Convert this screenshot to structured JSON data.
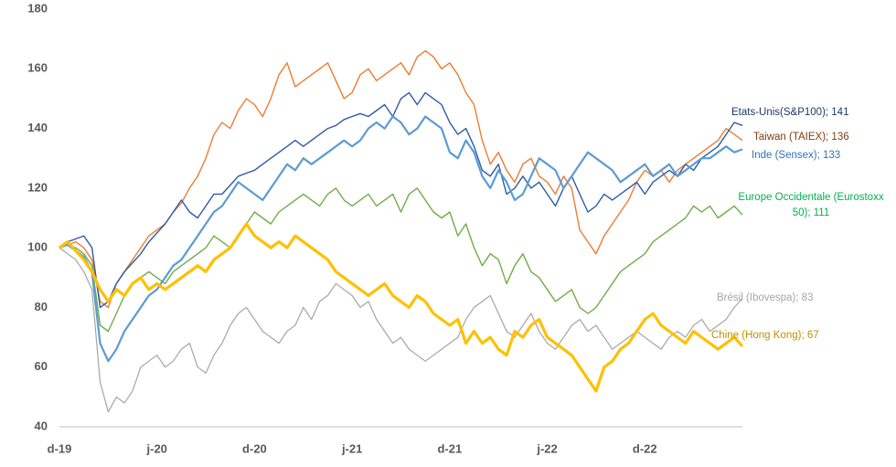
{
  "chart_data": {
    "type": "line",
    "categories": [
      "d-19",
      null,
      null,
      null,
      null,
      null,
      null,
      null,
      null,
      null,
      null,
      null,
      "j-20",
      null,
      null,
      null,
      null,
      null,
      null,
      null,
      null,
      null,
      null,
      null,
      "d-20",
      null,
      null,
      null,
      null,
      null,
      null,
      null,
      null,
      null,
      null,
      null,
      "j-21",
      null,
      null,
      null,
      null,
      null,
      null,
      null,
      null,
      null,
      null,
      null,
      "d-21",
      null,
      null,
      null,
      null,
      null,
      null,
      null,
      null,
      null,
      null,
      null,
      "j-22",
      null,
      null,
      null,
      null,
      null,
      null,
      null,
      null,
      null,
      null,
      null,
      "d-22",
      null,
      null,
      null,
      null,
      null,
      null,
      null,
      null,
      null,
      null,
      null,
      null
    ],
    "ylim": [
      40,
      180
    ],
    "yticks": [
      40,
      60,
      80,
      100,
      120,
      140,
      160,
      180
    ],
    "series": [
      {
        "label_lines": [
          "Etats-Unis(S&P100);  141"
        ],
        "color": "#2f5aa8",
        "label_color": "#1f3864",
        "values": [
          100,
          102,
          103,
          104,
          100,
          80,
          82,
          88,
          92,
          95,
          98,
          102,
          105,
          108,
          112,
          116,
          112,
          110,
          114,
          118,
          118,
          121,
          124,
          125,
          126,
          128,
          130,
          132,
          134,
          136,
          134,
          136,
          138,
          140,
          141,
          143,
          144,
          145,
          144,
          146,
          148,
          144,
          150,
          152,
          148,
          152,
          150,
          148,
          142,
          138,
          140,
          134,
          126,
          124,
          128,
          118,
          120,
          124,
          120,
          122,
          118,
          114,
          120,
          124,
          118,
          112,
          114,
          118,
          116,
          118,
          120,
          122,
          118,
          122,
          124,
          126,
          124,
          128,
          126,
          130,
          132,
          134,
          138,
          142,
          141
        ]
      },
      {
        "label_lines": [
          "Taiwan (TAIEX);  136"
        ],
        "color": "#ed7d31",
        "label_color": "#843c0c",
        "values": [
          100,
          101,
          102,
          100,
          96,
          82,
          80,
          88,
          92,
          96,
          100,
          104,
          106,
          108,
          112,
          115,
          120,
          124,
          130,
          138,
          142,
          140,
          146,
          150,
          148,
          144,
          150,
          158,
          162,
          154,
          156,
          158,
          160,
          162,
          156,
          150,
          152,
          158,
          160,
          156,
          158,
          160,
          162,
          158,
          164,
          166,
          164,
          160,
          162,
          158,
          152,
          148,
          136,
          128,
          132,
          126,
          122,
          128,
          130,
          124,
          122,
          118,
          124,
          120,
          106,
          102,
          98,
          104,
          108,
          112,
          116,
          122,
          126,
          124,
          126,
          122,
          126,
          128,
          130,
          132,
          134,
          136,
          140,
          138,
          136
        ]
      },
      {
        "label_lines": [
          "Inde (Sensex);  133"
        ],
        "color": "#5b9bd5",
        "label_color": "#2e75b6",
        "values": [
          100,
          101,
          99,
          97,
          92,
          68,
          62,
          66,
          72,
          76,
          80,
          84,
          86,
          90,
          94,
          96,
          100,
          104,
          108,
          112,
          114,
          118,
          122,
          120,
          118,
          116,
          120,
          124,
          128,
          126,
          130,
          128,
          130,
          132,
          134,
          136,
          134,
          136,
          140,
          142,
          140,
          144,
          142,
          138,
          140,
          144,
          142,
          140,
          132,
          130,
          136,
          132,
          124,
          120,
          126,
          122,
          116,
          118,
          124,
          130,
          128,
          126,
          120,
          124,
          128,
          132,
          130,
          128,
          126,
          122,
          124,
          126,
          128,
          124,
          126,
          128,
          124,
          126,
          128,
          130,
          130,
          132,
          134,
          132,
          133
        ]
      },
      {
        "label_lines": [
          "Europe Occidentale (Eurostoxx",
          "50);  111"
        ],
        "color": "#70ad47",
        "label_color": "#00b050",
        "values": [
          100,
          101,
          100,
          98,
          94,
          74,
          72,
          78,
          84,
          88,
          90,
          92,
          90,
          88,
          92,
          94,
          96,
          98,
          100,
          104,
          102,
          100,
          104,
          108,
          112,
          110,
          108,
          112,
          114,
          116,
          118,
          116,
          114,
          118,
          120,
          116,
          114,
          116,
          118,
          114,
          116,
          118,
          112,
          118,
          120,
          116,
          112,
          110,
          112,
          104,
          108,
          100,
          94,
          98,
          96,
          88,
          94,
          98,
          92,
          90,
          86,
          82,
          84,
          86,
          80,
          78,
          80,
          84,
          88,
          92,
          94,
          96,
          98,
          102,
          104,
          106,
          108,
          110,
          114,
          112,
          114,
          110,
          112,
          114,
          111
        ]
      },
      {
        "label_lines": [
          "Brésil (Ibovespa);  83"
        ],
        "color": "#a5a5a5",
        "label_color": "#a5a5a5",
        "values": [
          100,
          98,
          96,
          92,
          86,
          55,
          45,
          50,
          48,
          52,
          60,
          62,
          64,
          60,
          62,
          66,
          68,
          60,
          58,
          64,
          68,
          74,
          78,
          80,
          76,
          72,
          70,
          68,
          72,
          74,
          80,
          76,
          82,
          84,
          88,
          86,
          84,
          80,
          82,
          76,
          72,
          68,
          70,
          66,
          64,
          62,
          64,
          66,
          68,
          70,
          76,
          80,
          82,
          84,
          78,
          72,
          70,
          74,
          78,
          72,
          68,
          66,
          70,
          74,
          76,
          72,
          74,
          70,
          66,
          68,
          70,
          72,
          70,
          68,
          66,
          70,
          72,
          70,
          74,
          76,
          72,
          74,
          76,
          80,
          83
        ]
      },
      {
        "label_lines": [
          "Chine (Hong Kong); 67"
        ],
        "color": "#ffc000",
        "label_color": "#bf9000",
        "values": [
          100,
          102,
          99,
          96,
          92,
          86,
          82,
          86,
          84,
          88,
          90,
          86,
          88,
          86,
          88,
          90,
          92,
          94,
          92,
          96,
          98,
          100,
          104,
          108,
          104,
          102,
          100,
          102,
          100,
          104,
          102,
          100,
          98,
          96,
          92,
          90,
          88,
          86,
          84,
          86,
          88,
          84,
          82,
          80,
          84,
          82,
          78,
          76,
          74,
          76,
          68,
          72,
          68,
          70,
          66,
          64,
          72,
          70,
          74,
          76,
          70,
          68,
          66,
          64,
          60,
          56,
          52,
          60,
          62,
          66,
          68,
          72,
          76,
          78,
          74,
          72,
          70,
          68,
          72,
          70,
          68,
          66,
          68,
          70,
          67
        ]
      }
    ]
  }
}
